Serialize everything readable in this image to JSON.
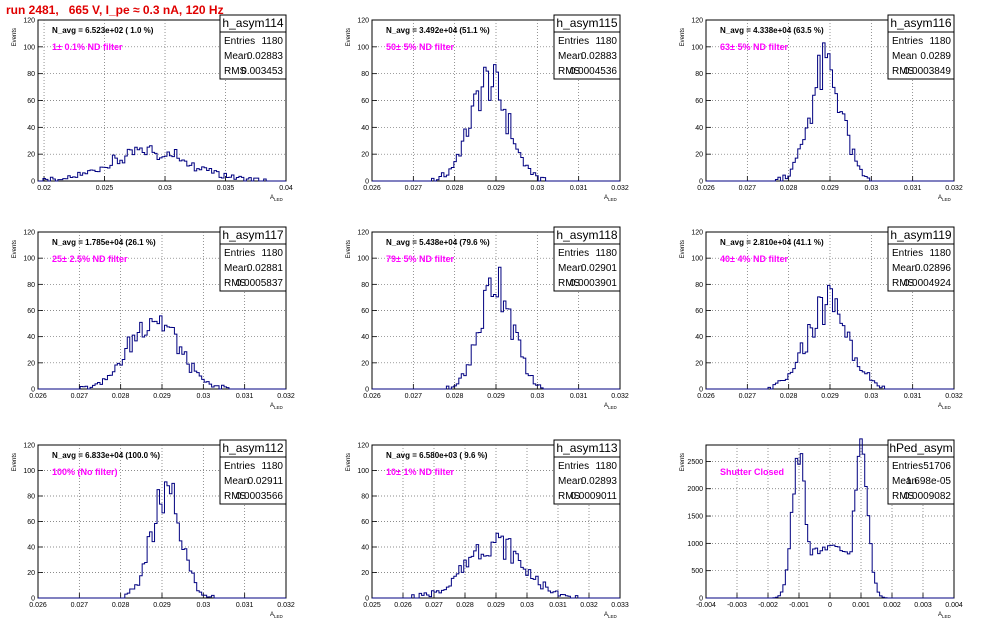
{
  "page_title": "run 2481,   665 V, I_pe ≈ 0.3 nA, 120 Hz",
  "colors": {
    "title": "#e00000",
    "histogram": "#000080",
    "annotation": "#ff00ff"
  },
  "chart_data": [
    {
      "type": "bar",
      "name": "h_asym114",
      "ylabel": "Events",
      "xlabel": "A_LED",
      "navg": "N_avg = 6.523e+02 ( 1.0 %)",
      "filter": "1± 0.1% ND filter",
      "stats": {
        "Entries": "1180",
        "Mean": "0.02883",
        "RMS": "0.003453"
      },
      "xlim": [
        0.0195,
        0.04
      ],
      "ylim": [
        0,
        120
      ],
      "xticks": [
        "0.02",
        "0.025",
        "0.03",
        "0.035",
        "0.04"
      ],
      "yticks": [
        "0",
        "20",
        "40",
        "60",
        "80",
        "100",
        "120"
      ],
      "dist": {
        "mean": 0.02883,
        "rms": 0.003453,
        "peak": 22
      }
    },
    {
      "type": "bar",
      "name": "h_asym115",
      "ylabel": "Events",
      "xlabel": "A_LED",
      "navg": "N_avg = 3.492e+04 (51.1 %)",
      "filter": "50± 5% ND filter",
      "stats": {
        "Entries": "1180",
        "Mean": "0.02883",
        "RMS": "0.0004536"
      },
      "xlim": [
        0.026,
        0.032
      ],
      "ylim": [
        0,
        120
      ],
      "xticks": [
        "0.026",
        "0.027",
        "0.028",
        "0.029",
        "0.03",
        "0.031",
        "0.032"
      ],
      "yticks": [
        "0",
        "20",
        "40",
        "60",
        "80",
        "100",
        "120"
      ],
      "dist": {
        "mean": 0.02883,
        "rms": 0.0004536,
        "peak": 74
      }
    },
    {
      "type": "bar",
      "name": "h_asym116",
      "ylabel": "Events",
      "xlabel": "A_LED",
      "navg": "N_avg = 4.338e+04 (63.5 %)",
      "filter": "63± 5% ND filter",
      "stats": {
        "Entries": "1180",
        "Mean": "0.0289",
        "RMS": "0.0003849"
      },
      "xlim": [
        0.026,
        0.032
      ],
      "ylim": [
        0,
        120
      ],
      "xticks": [
        "0.026",
        "0.027",
        "0.028",
        "0.029",
        "0.03",
        "0.031",
        "0.032"
      ],
      "yticks": [
        "0",
        "20",
        "40",
        "60",
        "80",
        "100",
        "120"
      ],
      "dist": {
        "mean": 0.0289,
        "rms": 0.0003849,
        "peak": 84
      }
    },
    {
      "type": "bar",
      "name": "h_asym117",
      "ylabel": "Events",
      "xlabel": "A_LED",
      "navg": "N_avg = 1.785e+04 (26.1 %)",
      "filter": "25± 2.5% ND filter",
      "stats": {
        "Entries": "1180",
        "Mean": "0.02881",
        "RMS": "0.0005837"
      },
      "xlim": [
        0.026,
        0.032
      ],
      "ylim": [
        0,
        120
      ],
      "xticks": [
        "0.026",
        "0.027",
        "0.028",
        "0.029",
        "0.03",
        "0.031",
        "0.032"
      ],
      "yticks": [
        "0",
        "20",
        "40",
        "60",
        "80",
        "100",
        "120"
      ],
      "dist": {
        "mean": 0.02881,
        "rms": 0.0005837,
        "peak": 55
      }
    },
    {
      "type": "bar",
      "name": "h_asym118",
      "ylabel": "Events",
      "xlabel": "A_LED",
      "navg": "N_avg = 5.438e+04 (79.6 %)",
      "filter": "79± 5% ND filter",
      "stats": {
        "Entries": "1180",
        "Mean": "0.02901",
        "RMS": "0.0003901"
      },
      "xlim": [
        0.026,
        0.032
      ],
      "ylim": [
        0,
        120
      ],
      "xticks": [
        "0.026",
        "0.027",
        "0.028",
        "0.029",
        "0.03",
        "0.031",
        "0.032"
      ],
      "yticks": [
        "0",
        "20",
        "40",
        "60",
        "80",
        "100",
        "120"
      ],
      "dist": {
        "mean": 0.02901,
        "rms": 0.0003901,
        "peak": 84
      }
    },
    {
      "type": "bar",
      "name": "h_asym119",
      "ylabel": "Events",
      "xlabel": "A_LED",
      "navg": "N_avg = 2.810e+04 (41.1 %)",
      "filter": "40± 4% ND filter",
      "stats": {
        "Entries": "1180",
        "Mean": "0.02896",
        "RMS": "0.0004924"
      },
      "xlim": [
        0.026,
        0.032
      ],
      "ylim": [
        0,
        120
      ],
      "xticks": [
        "0.026",
        "0.027",
        "0.028",
        "0.029",
        "0.03",
        "0.031",
        "0.032"
      ],
      "yticks": [
        "0",
        "20",
        "40",
        "60",
        "80",
        "100",
        "120"
      ],
      "dist": {
        "mean": 0.02896,
        "rms": 0.0004924,
        "peak": 66
      }
    },
    {
      "type": "bar",
      "name": "h_asym112",
      "ylabel": "Events",
      "xlabel": "A_LED",
      "navg": "N_avg = 6.833e+04 (100.0 %)",
      "filter": "100% (No filter)",
      "stats": {
        "Entries": "1180",
        "Mean": "0.02911",
        "RMS": "0.0003566"
      },
      "xlim": [
        0.026,
        0.032
      ],
      "ylim": [
        0,
        120
      ],
      "xticks": [
        "0.026",
        "0.027",
        "0.028",
        "0.029",
        "0.03",
        "0.031",
        "0.032"
      ],
      "yticks": [
        "0",
        "20",
        "40",
        "60",
        "80",
        "100",
        "120"
      ],
      "dist": {
        "mean": 0.02911,
        "rms": 0.0003566,
        "peak": 80
      }
    },
    {
      "type": "bar",
      "name": "h_asym113",
      "ylabel": "Events",
      "xlabel": "A_LED",
      "navg": "N_avg = 6.580e+03 ( 9.6 %)",
      "filter": "10± 1% ND filter",
      "stats": {
        "Entries": "1180",
        "Mean": "0.02893",
        "RMS": "0.0009011"
      },
      "xlim": [
        0.025,
        0.033
      ],
      "ylim": [
        0,
        120
      ],
      "xticks": [
        "0.025",
        "0.026",
        "0.027",
        "0.028",
        "0.029",
        "0.03",
        "0.031",
        "0.032",
        "0.033"
      ],
      "yticks": [
        "0",
        "20",
        "40",
        "60",
        "80",
        "100",
        "120"
      ],
      "dist": {
        "mean": 0.02893,
        "rms": 0.0009011,
        "peak": 44
      }
    },
    {
      "type": "bar",
      "name": "hPed_asym",
      "ylabel": "Events",
      "xlabel": "A_LED",
      "navg": "",
      "filter": "Shutter Closed",
      "stats": {
        "Entries": "51706",
        "Mean": "1.698e-05",
        "RMS": "0.0009082"
      },
      "xlim": [
        -0.004,
        0.004
      ],
      "ylim": [
        0,
        2800
      ],
      "xticks": [
        "-0.004",
        "-0.003",
        "-0.002",
        "-0.001",
        "0",
        "0.001",
        "0.002",
        "0.003",
        "0.004"
      ],
      "yticks": [
        "0",
        "500",
        "1000",
        "1500",
        "2000",
        "2500"
      ],
      "dist": {
        "shape": "double",
        "peaks": [
          -0.001,
          0.001
        ],
        "width": 0.00022,
        "peak": 2700,
        "valley": 700
      }
    }
  ]
}
